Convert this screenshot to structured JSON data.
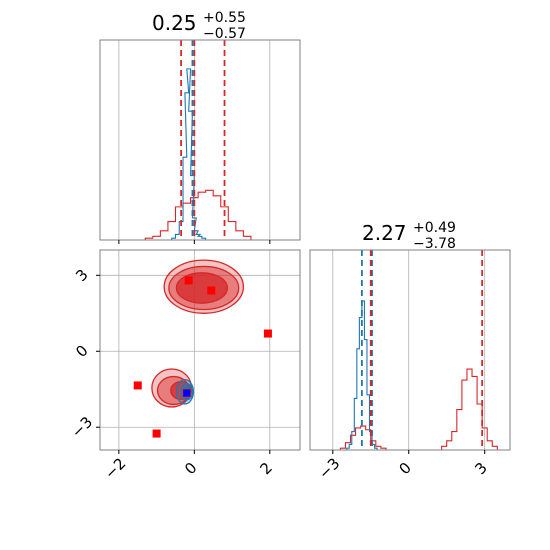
{
  "chart_data": {
    "type": "corner",
    "grid": true,
    "colors": {
      "series_a": "#1f77b4",
      "series_b": "#d62728",
      "markers": "#ff0000",
      "marker_center": "#0000ff",
      "grid": "#b0b0b0",
      "spine": "#808080"
    },
    "param1": {
      "title": {
        "value": "0.25",
        "plus": "+0.55",
        "minus": "−0.57"
      },
      "xlim": [
        -2.5,
        2.8
      ],
      "ticks": [
        -2,
        0,
        2
      ],
      "tick_labels": [
        "−2",
        "0",
        "2"
      ],
      "series_a_hist": {
        "x": [
          -0.55,
          -0.45,
          -0.35,
          -0.25,
          -0.2,
          -0.15,
          -0.1,
          -0.05,
          0.0,
          0.05,
          0.1,
          0.15,
          0.25,
          0.35
        ],
        "h": [
          0.01,
          0.03,
          0.1,
          0.45,
          0.8,
          0.93,
          0.7,
          0.35,
          0.12,
          0.05,
          0.03,
          0.02,
          0.01,
          0.0
        ]
      },
      "series_b_hist": {
        "x": [
          -1.4,
          -1.2,
          -1.0,
          -0.8,
          -0.6,
          -0.4,
          -0.2,
          0.0,
          0.2,
          0.4,
          0.6,
          0.8,
          1.0,
          1.2,
          1.4,
          1.6
        ],
        "h": [
          0.0,
          0.01,
          0.02,
          0.05,
          0.1,
          0.18,
          0.2,
          0.23,
          0.26,
          0.27,
          0.24,
          0.18,
          0.1,
          0.05,
          0.02,
          0.0
        ]
      },
      "series_a_quantiles": [
        -0.05
      ],
      "series_b_quantiles": [
        -0.35,
        0.0,
        0.8
      ]
    },
    "param2": {
      "title": {
        "value": "2.27",
        "plus": "+0.49",
        "minus": "−3.78"
      },
      "xlim": [
        -3.9,
        4.0
      ],
      "ticks": [
        -3,
        0,
        3
      ],
      "tick_labels": [
        "−3",
        "0",
        "3"
      ],
      "series_a_hist": {
        "x": [
          -2.4,
          -2.3,
          -2.2,
          -2.1,
          -2.0,
          -1.9,
          -1.8,
          -1.7,
          -1.6,
          -1.5,
          -1.4,
          -1.3
        ],
        "h": [
          0.01,
          0.03,
          0.1,
          0.28,
          0.55,
          0.72,
          0.81,
          0.6,
          0.3,
          0.1,
          0.03,
          0.01
        ]
      },
      "series_b_hist": {
        "x": [
          -2.6,
          -2.4,
          -2.2,
          -2.0,
          -1.8,
          -1.6,
          -1.4,
          -1.2,
          -1.0,
          1.4,
          1.6,
          1.8,
          2.0,
          2.2,
          2.4,
          2.6,
          2.8,
          3.0,
          3.2,
          3.4
        ],
        "h": [
          0.01,
          0.04,
          0.08,
          0.12,
          0.13,
          0.11,
          0.05,
          0.02,
          0.01,
          0.02,
          0.05,
          0.1,
          0.22,
          0.38,
          0.44,
          0.4,
          0.25,
          0.12,
          0.05,
          0.02
        ]
      },
      "series_a_quantiles": [
        -1.85,
        -1.45
      ],
      "series_b_quantiles": [
        -1.5,
        2.9
      ]
    },
    "joint": {
      "xlim": [
        -2.5,
        2.8
      ],
      "ylim": [
        -3.9,
        4.0
      ],
      "xticks": [
        -2,
        0,
        2
      ],
      "xtick_labels": [
        "−2",
        "0",
        "2"
      ],
      "yticks": [
        -3,
        0,
        3
      ],
      "ytick_labels": [
        "−3",
        "0",
        "3"
      ],
      "series_b_contours": [
        {
          "cx": 0.25,
          "cy": 2.55,
          "rx": 2.1,
          "ry": 1.05,
          "level": "outer"
        },
        {
          "cx": 0.25,
          "cy": 2.5,
          "rx": 1.85,
          "ry": 0.85,
          "level": "mid"
        },
        {
          "cx": 0.2,
          "cy": 2.5,
          "rx": 1.35,
          "ry": 0.6,
          "level": "inner"
        },
        {
          "cx": -0.6,
          "cy": -1.45,
          "rx": 1.05,
          "ry": 0.75,
          "level": "outer"
        },
        {
          "cx": -0.55,
          "cy": -1.55,
          "rx": 0.85,
          "ry": 0.55,
          "level": "mid"
        },
        {
          "cx": -0.35,
          "cy": -1.55,
          "rx": 0.55,
          "ry": 0.35,
          "level": "inner"
        }
      ],
      "series_a_contours": [
        {
          "cx": -0.25,
          "cy": -1.6,
          "rx": 0.45,
          "ry": 0.48
        },
        {
          "cx": -0.2,
          "cy": -1.6,
          "rx": 0.3,
          "ry": 0.32
        },
        {
          "cx": -0.2,
          "cy": -1.6,
          "rx": 0.15,
          "ry": 0.18
        }
      ],
      "markers": [
        {
          "x": -0.15,
          "y": 2.8
        },
        {
          "x": 0.45,
          "y": 2.4
        },
        {
          "x": 1.95,
          "y": 0.7
        },
        {
          "x": -1.5,
          "y": -1.35
        },
        {
          "x": -1.0,
          "y": -3.25
        },
        {
          "x": -0.2,
          "y": -1.65
        }
      ],
      "center_marker": {
        "x": -0.2,
        "y": -1.65
      }
    }
  }
}
